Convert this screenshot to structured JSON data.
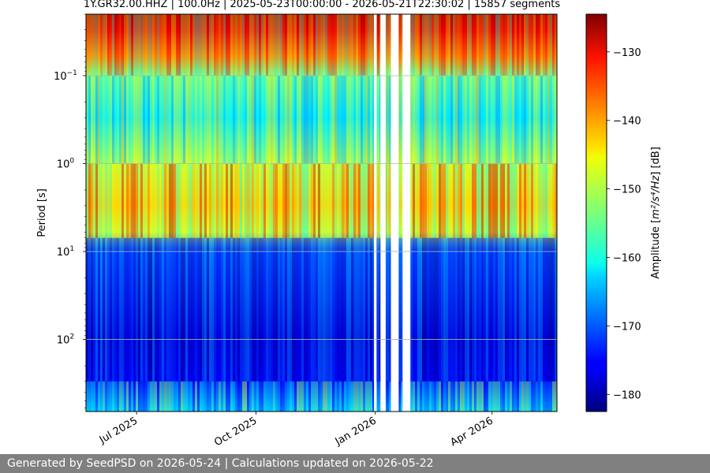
{
  "chart_data": {
    "type": "heatmap",
    "title": "1Y.GR32.00.HHZ | 100.0Hz | 2025-05-23T00:00:00 - 2026-05-21T22:30:02 | 15857 segments",
    "xlabel": "",
    "ylabel": "Period [s]",
    "x_range": [
      "2025-05-23",
      "2026-05-21"
    ],
    "x_ticks": [
      {
        "date": "2025-07-01",
        "label": "Jul 2025"
      },
      {
        "date": "2025-10-01",
        "label": "Oct 2025"
      },
      {
        "date": "2026-01-01",
        "label": "Jan 2026"
      },
      {
        "date": "2026-04-01",
        "label": "Apr 2026"
      }
    ],
    "y_scale": "log",
    "y_inverted": true,
    "y_range": [
      0.02,
      660
    ],
    "y_ticks": [
      {
        "value": 0.1,
        "base": "10",
        "exp": "−1"
      },
      {
        "value": 1,
        "base": "10",
        "exp": "0"
      },
      {
        "value": 10,
        "base": "10",
        "exp": "1"
      },
      {
        "value": 100,
        "base": "10",
        "exp": "2"
      }
    ],
    "grid": true,
    "colorbar": {
      "label_prefix": "Amplitude [",
      "label_math": "m²/s⁴/Hz",
      "label_suffix": "] [dB]",
      "colormap": "jet",
      "range": [
        -182.5,
        -124.5
      ],
      "ticks": [
        -130,
        -140,
        -150,
        -160,
        -170,
        -180
      ],
      "tick_labels": [
        "−130",
        "−140",
        "−150",
        "−160",
        "−170",
        "−180"
      ]
    },
    "data_gaps": [
      [
        "2025-12-31",
        "2026-01-02"
      ],
      [
        "2026-01-05",
        "2026-01-09"
      ],
      [
        "2026-01-13",
        "2026-01-19"
      ],
      [
        "2026-01-22",
        "2026-01-28"
      ]
    ],
    "amplitude_profile": [
      {
        "period": 0.02,
        "db": -127
      },
      {
        "period": 0.03,
        "db": -130
      },
      {
        "period": 0.06,
        "db": -138
      },
      {
        "period": 0.1,
        "db": -155
      },
      {
        "period": 0.3,
        "db": -162
      },
      {
        "period": 1.0,
        "db": -150
      },
      {
        "period": 3.0,
        "db": -143
      },
      {
        "period": 6.0,
        "db": -150
      },
      {
        "period": 10,
        "db": -170
      },
      {
        "period": 100,
        "db": -178
      },
      {
        "period": 300,
        "db": -176
      },
      {
        "period": 660,
        "db": -164
      }
    ]
  },
  "footer": {
    "text": "Generated by SeedPSD on 2026-05-24 | Calculations updated on 2026-05-22"
  }
}
